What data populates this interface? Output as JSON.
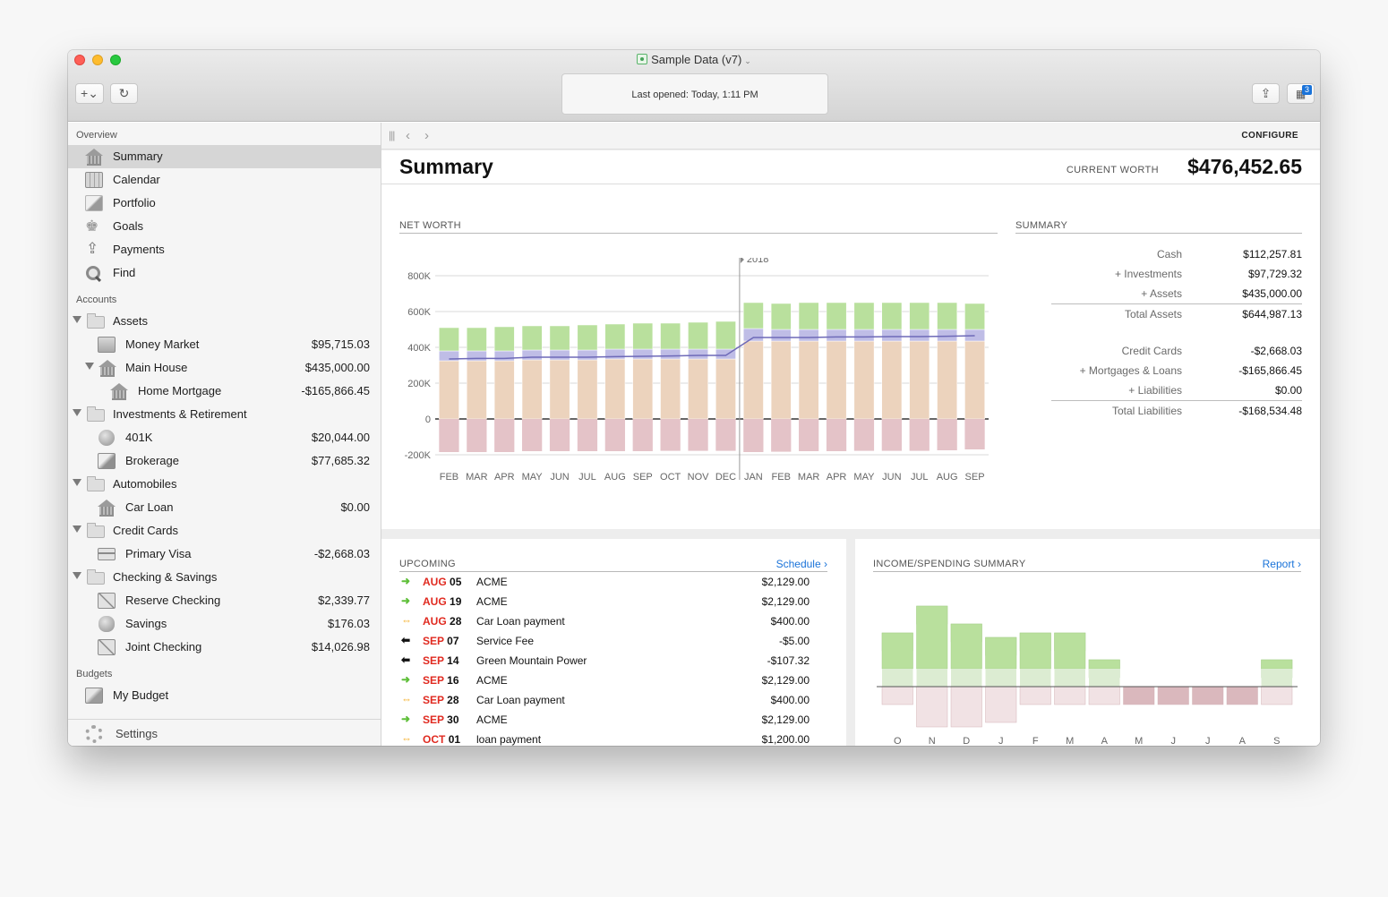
{
  "window": {
    "title": "Sample Data (v7)",
    "status": "Last opened: Today, 1:11 PM",
    "badge_count": "3"
  },
  "sidebar": {
    "overview_title": "Overview",
    "overview": [
      {
        "label": "Summary",
        "icon": "bank-icon"
      },
      {
        "label": "Calendar",
        "icon": "calendar-icon"
      },
      {
        "label": "Portfolio",
        "icon": "portfolio-icon"
      },
      {
        "label": "Goals",
        "icon": "trophy-icon"
      },
      {
        "label": "Payments",
        "icon": "upload-icon"
      },
      {
        "label": "Find",
        "icon": "magnifier-icon"
      }
    ],
    "accounts_title": "Accounts",
    "accounts": [
      {
        "label": "Assets",
        "amount": "",
        "level": 0,
        "group": true
      },
      {
        "label": "Money Market",
        "amount": "$95,715.03",
        "level": 1
      },
      {
        "label": "Main House",
        "amount": "$435,000.00",
        "level": 1,
        "group": true
      },
      {
        "label": "Home Mortgage",
        "amount": "-$165,866.45",
        "level": 2
      },
      {
        "label": "Investments & Retirement",
        "amount": "",
        "level": 0,
        "group": true
      },
      {
        "label": "401K",
        "amount": "$20,044.00",
        "level": 1
      },
      {
        "label": "Brokerage",
        "amount": "$77,685.32",
        "level": 1
      },
      {
        "label": "Automobiles",
        "amount": "",
        "level": 0,
        "group": true
      },
      {
        "label": "Car Loan",
        "amount": "$0.00",
        "level": 1
      },
      {
        "label": "Credit Cards",
        "amount": "",
        "level": 0,
        "group": true
      },
      {
        "label": "Primary Visa",
        "amount": "-$2,668.03",
        "level": 1
      },
      {
        "label": "Checking & Savings",
        "amount": "",
        "level": 0,
        "group": true
      },
      {
        "label": "Reserve Checking",
        "amount": "$2,339.77",
        "level": 1
      },
      {
        "label": "Savings",
        "amount": "$176.03",
        "level": 1
      },
      {
        "label": "Joint Checking",
        "amount": "$14,026.98",
        "level": 1
      }
    ],
    "budgets_title": "Budgets",
    "budgets": [
      {
        "label": "My Budget"
      }
    ],
    "settings_label": "Settings"
  },
  "main": {
    "configure_label": "CONFIGURE",
    "page_title": "Summary",
    "current_worth_label": "CURRENT WORTH",
    "current_worth": "$476,452.65",
    "net_worth_title": "NET WORTH",
    "summary_title": "SUMMARY",
    "summary_rows": [
      {
        "label": "Cash",
        "value": "$112,257.81"
      },
      {
        "label": "+ Investments",
        "value": "$97,729.32"
      },
      {
        "label": "+ Assets",
        "value": "$435,000.00"
      },
      {
        "label": "Total Assets",
        "value": "$644,987.13",
        "total": true
      },
      {
        "label": "Credit Cards",
        "value": "-$2,668.03"
      },
      {
        "label": "+ Mortgages & Loans",
        "value": "-$165,866.45"
      },
      {
        "label": "+ Liabilities",
        "value": "$0.00"
      },
      {
        "label": "Total Liabilities",
        "value": "-$168,534.48",
        "total": true
      }
    ],
    "upcoming_title": "UPCOMING",
    "schedule_link": "Schedule",
    "upcoming": [
      {
        "mon": "AUG",
        "day": "05",
        "payee": "ACME",
        "amount": "$2,129.00",
        "kind": "income"
      },
      {
        "mon": "AUG",
        "day": "19",
        "payee": "ACME",
        "amount": "$2,129.00",
        "kind": "income"
      },
      {
        "mon": "AUG",
        "day": "28",
        "payee": "Car  Loan payment",
        "amount": "$400.00",
        "kind": "transfer"
      },
      {
        "mon": "SEP",
        "day": "07",
        "payee": "Service Fee",
        "amount": "-$5.00",
        "kind": "expense"
      },
      {
        "mon": "SEP",
        "day": "14",
        "payee": "Green Mountain Power",
        "amount": "-$107.32",
        "kind": "expense"
      },
      {
        "mon": "SEP",
        "day": "16",
        "payee": "ACME",
        "amount": "$2,129.00",
        "kind": "income"
      },
      {
        "mon": "SEP",
        "day": "28",
        "payee": "Car  Loan payment",
        "amount": "$400.00",
        "kind": "transfer"
      },
      {
        "mon": "SEP",
        "day": "30",
        "payee": "ACME",
        "amount": "$2,129.00",
        "kind": "income"
      },
      {
        "mon": "OCT",
        "day": "01",
        "payee": "loan payment",
        "amount": "$1,200.00",
        "kind": "transfer"
      }
    ],
    "income_title": "INCOME/SPENDING SUMMARY",
    "report_link": "Report"
  },
  "colors": {
    "accent": "#1a73d9",
    "date_red": "#e02a20",
    "assets": "#b9e09d",
    "investments": "#bfbde6",
    "property": "#ecd3bd",
    "liabilities": "#e4c3c8"
  },
  "chart_data": [
    {
      "type": "bar",
      "stacked": true,
      "title": "NET WORTH",
      "categories": [
        "FEB",
        "MAR",
        "APR",
        "MAY",
        "JUN",
        "JUL",
        "AUG",
        "SEP",
        "OCT",
        "NOV",
        "DEC",
        "JAN",
        "FEB",
        "MAR",
        "APR",
        "MAY",
        "JUN",
        "JUL",
        "AUG",
        "SEP"
      ],
      "year_marker": {
        "label": "2018",
        "before_index": 11
      },
      "yticks": [
        "800K",
        "600K",
        "400K",
        "200K",
        "0",
        "-200K"
      ],
      "ylim": [
        -200000,
        800000
      ],
      "series": [
        {
          "values": [
            325000,
            325000,
            325000,
            330000,
            330000,
            330000,
            335000,
            335000,
            335000,
            335000,
            335000,
            435000,
            435000,
            435000,
            435000,
            435000,
            435000,
            435000,
            435000,
            435000
          ]
        },
        {
          "values": [
            55000,
            55000,
            55000,
            55000,
            55000,
            55000,
            55000,
            55000,
            55000,
            55000,
            55000,
            70000,
            65000,
            65000,
            65000,
            65000,
            65000,
            65000,
            65000,
            65000
          ]
        },
        {
          "values": [
            130000,
            130000,
            135000,
            135000,
            135000,
            140000,
            140000,
            145000,
            145000,
            150000,
            155000,
            145000,
            145000,
            150000,
            150000,
            150000,
            150000,
            150000,
            150000,
            145000
          ]
        },
        {
          "values": [
            -185000,
            -185000,
            -185000,
            -180000,
            -180000,
            -180000,
            -180000,
            -180000,
            -178000,
            -178000,
            -178000,
            -185000,
            -183000,
            -180000,
            -180000,
            -178000,
            -178000,
            -178000,
            -175000,
            -170000
          ]
        }
      ],
      "net_line": [
        335000,
        338000,
        338000,
        345000,
        345000,
        345000,
        348000,
        350000,
        352000,
        355000,
        355000,
        455000,
        455000,
        455000,
        458000,
        458000,
        460000,
        460000,
        462000,
        465000
      ],
      "grid": true
    },
    {
      "type": "bar",
      "title": "INCOME/SPENDING SUMMARY",
      "categories": [
        "O",
        "N",
        "D",
        "J",
        "F",
        "M",
        "A",
        "M",
        "J",
        "J",
        "A",
        "S"
      ],
      "series": [
        {
          "name": "income",
          "values": [
            60,
            90,
            70,
            55,
            60,
            60,
            30,
            0,
            0,
            0,
            0,
            30
          ]
        },
        {
          "name": "spending",
          "values": [
            -20,
            -45,
            -45,
            -40,
            -20,
            -20,
            -20,
            -20,
            -20,
            -20,
            -20,
            -20
          ]
        }
      ]
    }
  ]
}
